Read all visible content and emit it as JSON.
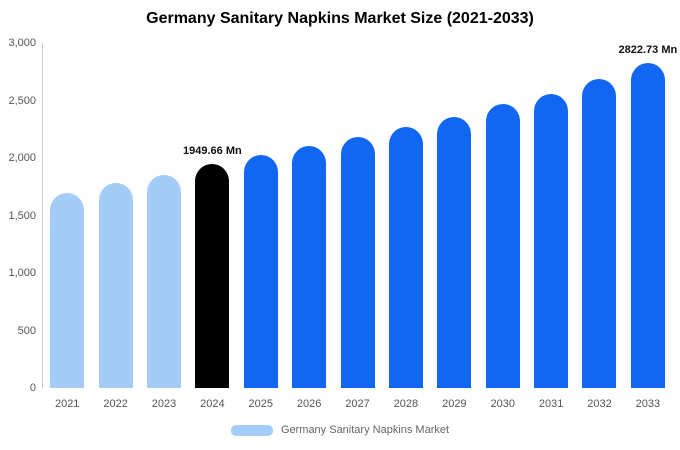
{
  "chart_data": {
    "type": "bar",
    "title": "Germany Sanitary Napkins Market Size (2021-2033)",
    "categories": [
      "2021",
      "2022",
      "2023",
      "2024",
      "2025",
      "2026",
      "2027",
      "2028",
      "2029",
      "2030",
      "2031",
      "2032",
      "2033"
    ],
    "values": [
      1700,
      1780,
      1850,
      1949.66,
      2025,
      2105,
      2185,
      2270,
      2360,
      2470,
      2560,
      2685,
      2822.73
    ],
    "ylabel": "",
    "xlabel": "",
    "ylim": [
      0,
      3000
    ],
    "y_ticks": [
      "3,000",
      "2,500",
      "2,000",
      "1,500",
      "1,000",
      "500",
      "0"
    ],
    "grid": false,
    "bar_colors": [
      "light",
      "light",
      "light",
      "black",
      "blue",
      "blue",
      "blue",
      "blue",
      "blue",
      "blue",
      "blue",
      "blue",
      "blue"
    ],
    "colors": {
      "light": "#A3CCF9",
      "black": "#000000",
      "blue": "#1166F2"
    },
    "annotations": [
      {
        "category": "2024",
        "text": "1949.66 Mn"
      },
      {
        "category": "2033",
        "text": "2822.73 Mn"
      }
    ],
    "legend_position": "bottom",
    "legend": [
      {
        "label": "Germany Sanitary Napkins Market",
        "color": "#A3CCF9"
      }
    ]
  }
}
